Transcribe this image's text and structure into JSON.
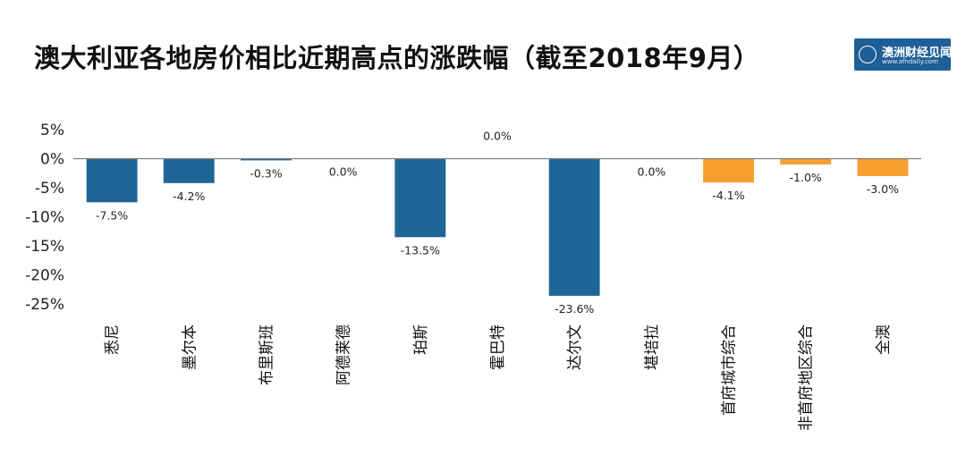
{
  "title": "澳大利亚各地房价相比近期高点的涨跌幅（截至2018年9月）",
  "logo": {
    "name": "澳洲财经见闻",
    "url": "www.afndaily.com"
  },
  "chart_data": {
    "type": "bar",
    "title": "澳大利亚各地房价相比近期高点的涨跌幅（截至2018年9月）",
    "categories": [
      "悉尼",
      "墨尔本",
      "布里斯班",
      "阿德莱德",
      "珀斯",
      "霍巴特",
      "达尔文",
      "堪培拉",
      "首府城市综合",
      "非首府地区综合",
      "全澳"
    ],
    "values": [
      -7.5,
      -4.2,
      -0.3,
      0.0,
      -13.5,
      0.0,
      -23.6,
      0.0,
      -4.1,
      -1.0,
      -3.0
    ],
    "value_labels": [
      "-7.5%",
      "-4.2%",
      "-0.3%",
      "0.0%",
      "-13.5%",
      "0.0%",
      "-23.6%",
      "0.0%",
      "-4.1%",
      "-1.0%",
      "-3.0%"
    ],
    "bar_colors": [
      "#1f6698",
      "#1f6698",
      "#1f6698",
      "#1f6698",
      "#1f6698",
      "#1f6698",
      "#1f6698",
      "#1f6698",
      "#f5a031",
      "#f5a031",
      "#f5a031"
    ],
    "ylim": [
      -25,
      5
    ],
    "yticks": [
      5,
      0,
      -5,
      -10,
      -15,
      -20,
      -25
    ],
    "ytick_labels": [
      "5%",
      "0%",
      "-5%",
      "-10%",
      "-15%",
      "-20%",
      "-25%"
    ],
    "xlabel": "",
    "ylabel": "",
    "grid": false,
    "legend": "none"
  }
}
